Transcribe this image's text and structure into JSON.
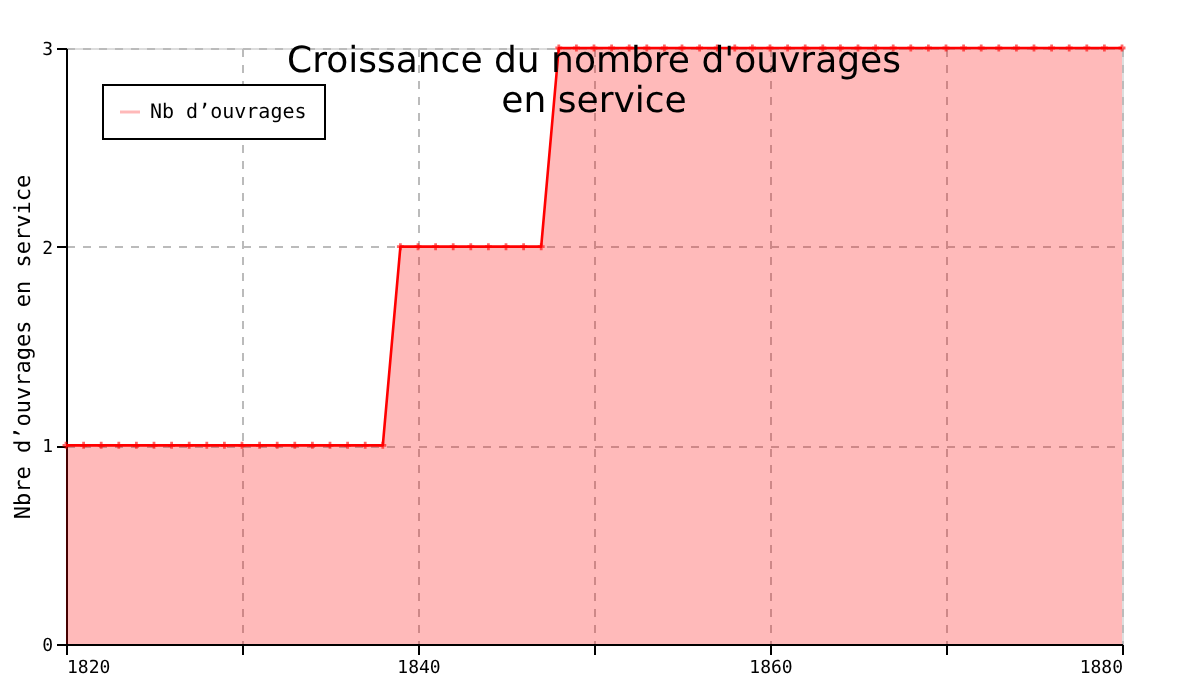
{
  "chart_data": {
    "type": "area",
    "title": "Croissance du nombre d'ouvrages en service",
    "ylabel": "Nbre d’ouvrages en service",
    "x": [
      1820,
      1821,
      1822,
      1823,
      1824,
      1825,
      1826,
      1827,
      1828,
      1829,
      1830,
      1831,
      1832,
      1833,
      1834,
      1835,
      1836,
      1837,
      1838,
      1839,
      1840,
      1841,
      1842,
      1843,
      1844,
      1845,
      1846,
      1847,
      1848,
      1849,
      1850,
      1851,
      1852,
      1853,
      1854,
      1855,
      1856,
      1857,
      1858,
      1859,
      1860,
      1861,
      1862,
      1863,
      1864,
      1865,
      1866,
      1867,
      1868,
      1869,
      1870,
      1871,
      1872,
      1873,
      1874,
      1875,
      1876,
      1877,
      1878,
      1879,
      1880
    ],
    "series": [
      {
        "name": "Nb d’ouvrages",
        "color": "#ff0000",
        "values": [
          1,
          1,
          1,
          1,
          1,
          1,
          1,
          1,
          1,
          1,
          1,
          1,
          1,
          1,
          1,
          1,
          1,
          1,
          1,
          2,
          2,
          2,
          2,
          2,
          2,
          2,
          2,
          2,
          3,
          3,
          3,
          3,
          3,
          3,
          3,
          3,
          3,
          3,
          3,
          3,
          3,
          3,
          3,
          3,
          3,
          3,
          3,
          3,
          3,
          3,
          3,
          3,
          3,
          3,
          3,
          3,
          3,
          3,
          3,
          3,
          3
        ]
      }
    ],
    "xlim": [
      1820,
      1880
    ],
    "xticks": [
      1820,
      {
        "value": 1830,
        "label": null
      },
      1840,
      {
        "value": 1850,
        "label": null
      },
      1860,
      {
        "value": 1870,
        "label": null
      },
      1880
    ],
    "ylim": [
      0,
      3
    ],
    "yticks": [
      0,
      1,
      2,
      3
    ],
    "grid": true,
    "legend": "top left",
    "marker": "cross",
    "line_style": "solid"
  }
}
